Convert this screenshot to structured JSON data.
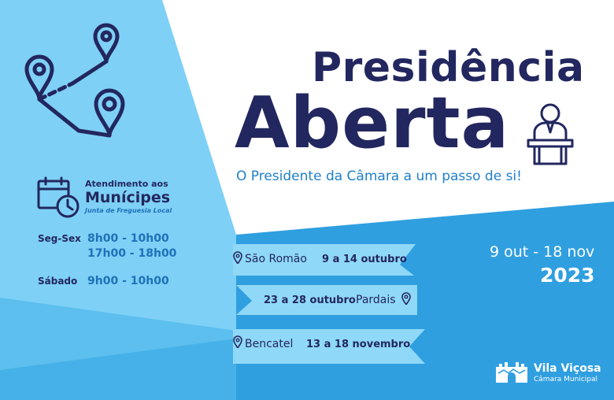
{
  "title": {
    "line1": "Presidência",
    "line2": "Aberta"
  },
  "subtitle": "O Presidente da Câmara a um passo de si!",
  "attendance": {
    "line1": "Atendimento aos",
    "line2": "Munícipes",
    "line3": "Junta de Freguesia Local"
  },
  "schedule": [
    {
      "day": "Seg-Sex",
      "times": [
        "8h00 - 10h00",
        "17h00 - 18h00"
      ]
    },
    {
      "day": "Sábado",
      "times": [
        "9h00 - 10h00"
      ]
    }
  ],
  "visits": [
    {
      "place": "São Romão",
      "dates": "9 a 14 outubro"
    },
    {
      "place": "Pardais",
      "dates": "23 a 28 outubro"
    },
    {
      "place": "Bencatel",
      "dates": "13 a 18 novembro"
    }
  ],
  "period": {
    "range": "9 out - 18 nov",
    "year": "2023"
  },
  "brand": {
    "name": "Vila Viçosa",
    "sub": "Câmara Municipal"
  },
  "icons": [
    "route-map-icon",
    "calendar-clock-icon",
    "speaker-podium-icon",
    "location-pin-icon",
    "castle-logo-icon"
  ],
  "colors": {
    "navy": "#23275f",
    "light_blue": "#7fd0f5",
    "mid_blue": "#5cc0ee",
    "strong_blue": "#2f9fe0",
    "text_blue": "#1f71b8"
  }
}
